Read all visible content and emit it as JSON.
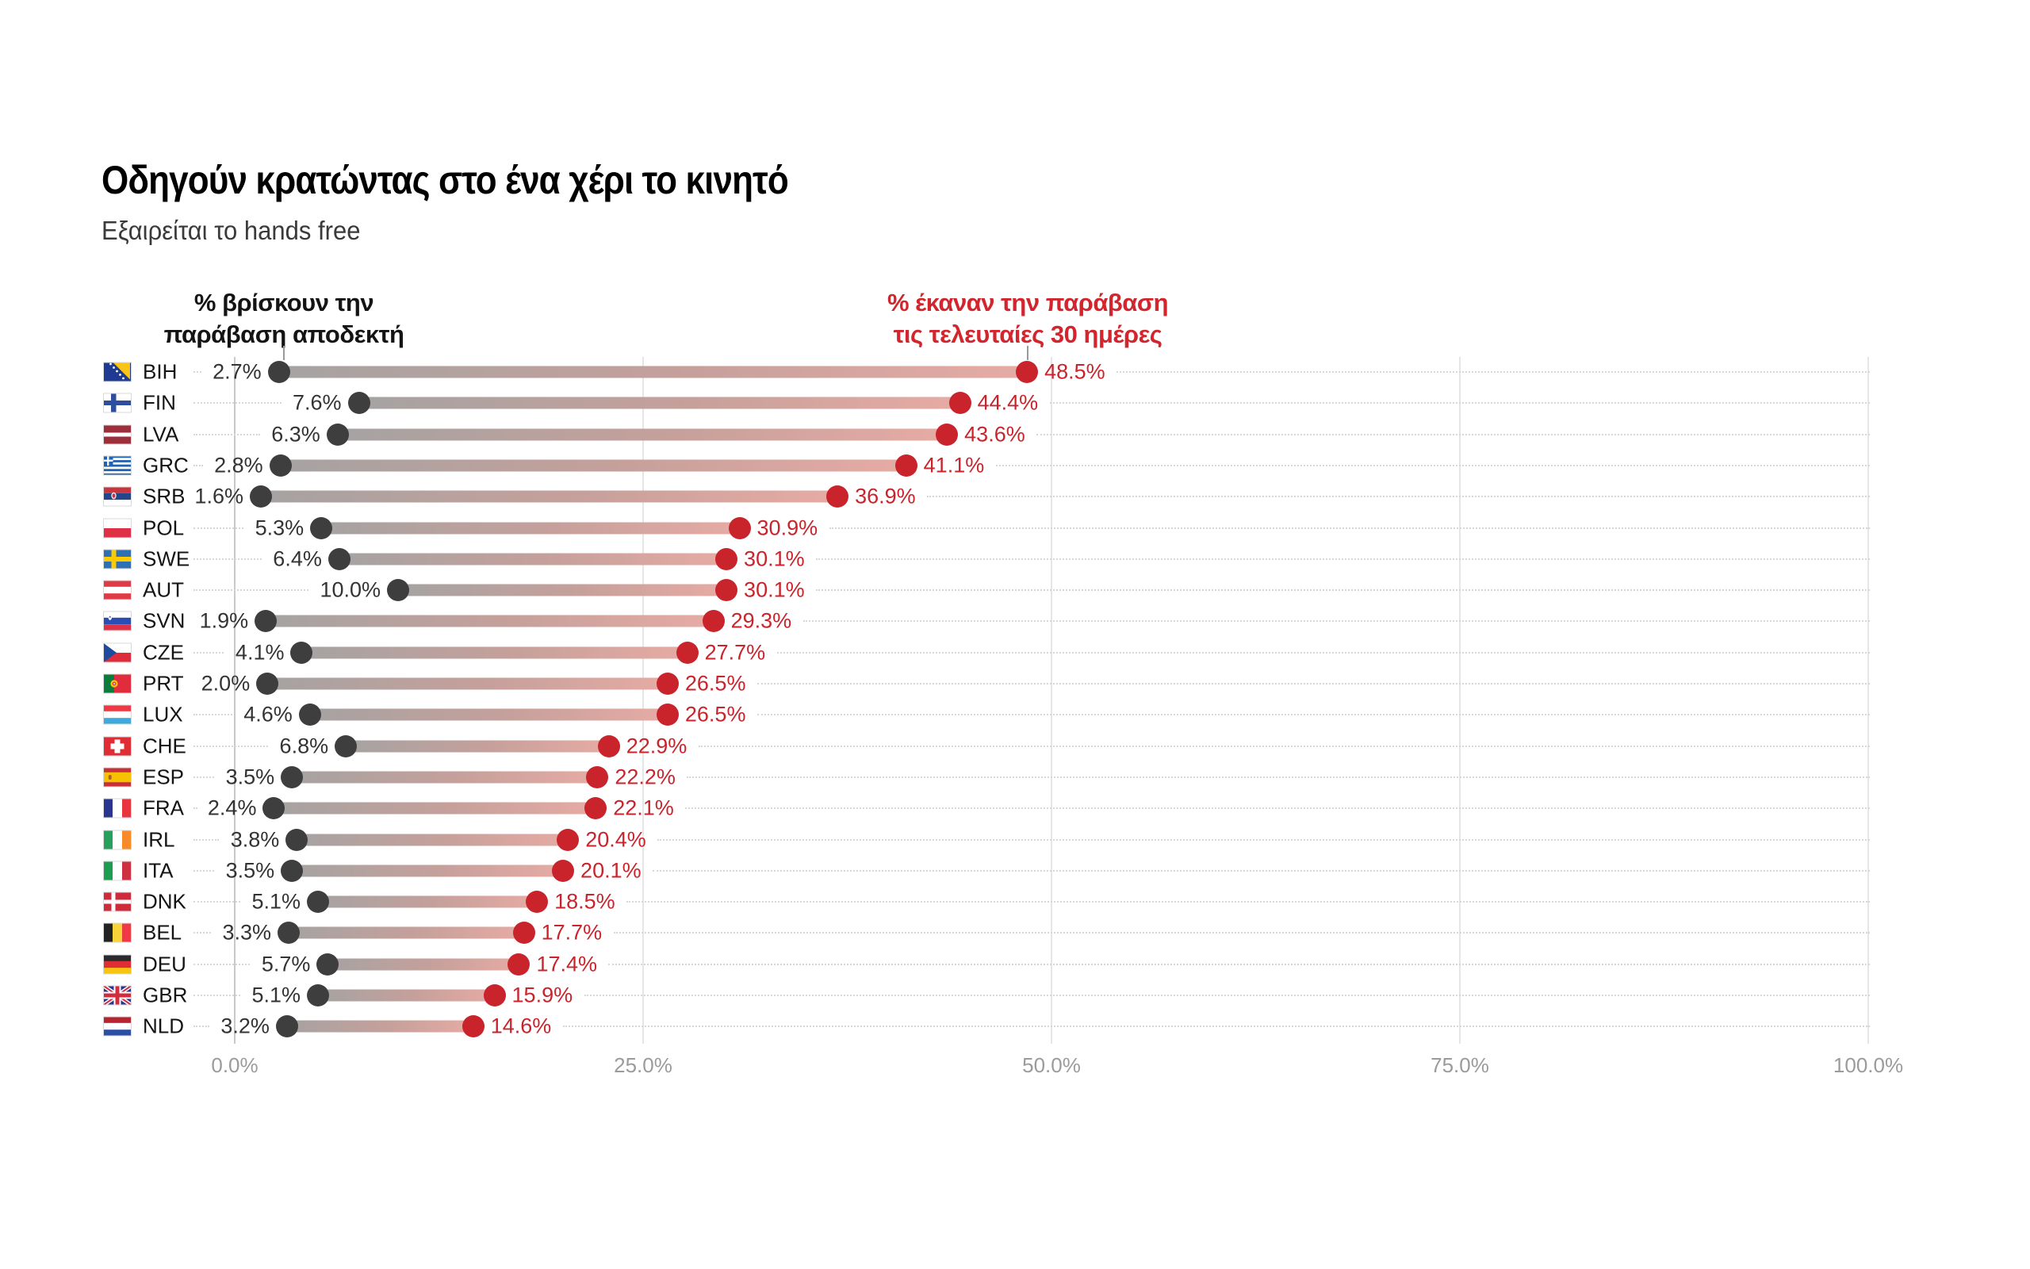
{
  "title": "Οδηγούν κρατώντας στο ένα χέρι το κινητό",
  "subtitle": "Εξαιρείται το hands free",
  "legend_left": {
    "line1": "% βρίσκουν την",
    "line2": "παράβαση αποδεκτή"
  },
  "legend_right": {
    "line1": "% έκαναν την παράβαση",
    "line2": "τις τελευταίες 30 ημέρες"
  },
  "colors": {
    "accept_dot": "#3e3e3e",
    "accept_text": "#333333",
    "violate_dot": "#c9242c",
    "violate_text": "#c9242c",
    "header_red": "#d2252e",
    "bar_start": "#a5a3a2",
    "bar_mid": "#c6a09b",
    "bar_end": "#e6aba4",
    "grid": "#e6e6e6",
    "grid_zero": "#c9c9c9",
    "axis_text": "#9b9b9b",
    "leader": "#d7d7d7",
    "pointer": "#9a9a9a"
  },
  "chart_data": {
    "type": "dumbbell",
    "unit": "%",
    "series_names": [
      "% βρίσκουν την παράβαση αποδεκτή",
      "% έκαναν την παράβαση τις τελευταίες 30 ημέρες"
    ],
    "x_axis": {
      "min": 0,
      "max": 100,
      "ticks": [
        {
          "label": "0.0%",
          "value": 0
        },
        {
          "label": "25.0%",
          "value": 25
        },
        {
          "label": "50.0%",
          "value": 50
        },
        {
          "label": "75.0%",
          "value": 75
        },
        {
          "label": "100.0%",
          "value": 100
        }
      ]
    },
    "rows": [
      {
        "code": "BIH",
        "flag": "bih",
        "accept": 2.7,
        "accept_label": "2.7%",
        "violate": 48.5,
        "violate_label": "48.5%"
      },
      {
        "code": "FIN",
        "flag": "fin",
        "accept": 7.6,
        "accept_label": "7.6%",
        "violate": 44.4,
        "violate_label": "44.4%"
      },
      {
        "code": "LVA",
        "flag": "lva",
        "accept": 6.3,
        "accept_label": "6.3%",
        "violate": 43.6,
        "violate_label": "43.6%"
      },
      {
        "code": "GRC",
        "flag": "grc",
        "accept": 2.8,
        "accept_label": "2.8%",
        "violate": 41.1,
        "violate_label": "41.1%"
      },
      {
        "code": "SRB",
        "flag": "srb",
        "accept": 1.6,
        "accept_label": "1.6%",
        "violate": 36.9,
        "violate_label": "36.9%"
      },
      {
        "code": "POL",
        "flag": "pol",
        "accept": 5.3,
        "accept_label": "5.3%",
        "violate": 30.9,
        "violate_label": "30.9%"
      },
      {
        "code": "SWE",
        "flag": "swe",
        "accept": 6.4,
        "accept_label": "6.4%",
        "violate": 30.1,
        "violate_label": "30.1%"
      },
      {
        "code": "AUT",
        "flag": "aut",
        "accept": 10.0,
        "accept_label": "10.0%",
        "violate": 30.1,
        "violate_label": "30.1%"
      },
      {
        "code": "SVN",
        "flag": "svn",
        "accept": 1.9,
        "accept_label": "1.9%",
        "violate": 29.3,
        "violate_label": "29.3%"
      },
      {
        "code": "CZE",
        "flag": "cze",
        "accept": 4.1,
        "accept_label": "4.1%",
        "violate": 27.7,
        "violate_label": "27.7%"
      },
      {
        "code": "PRT",
        "flag": "prt",
        "accept": 2.0,
        "accept_label": "2.0%",
        "violate": 26.5,
        "violate_label": "26.5%"
      },
      {
        "code": "LUX",
        "flag": "lux",
        "accept": 4.6,
        "accept_label": "4.6%",
        "violate": 26.5,
        "violate_label": "26.5%"
      },
      {
        "code": "CHE",
        "flag": "che",
        "accept": 6.8,
        "accept_label": "6.8%",
        "violate": 22.9,
        "violate_label": "22.9%"
      },
      {
        "code": "ESP",
        "flag": "esp",
        "accept": 3.5,
        "accept_label": "3.5%",
        "violate": 22.2,
        "violate_label": "22.2%"
      },
      {
        "code": "FRA",
        "flag": "fra",
        "accept": 2.4,
        "accept_label": "2.4%",
        "violate": 22.1,
        "violate_label": "22.1%"
      },
      {
        "code": "IRL",
        "flag": "irl",
        "accept": 3.8,
        "accept_label": "3.8%",
        "violate": 20.4,
        "violate_label": "20.4%"
      },
      {
        "code": "ITA",
        "flag": "ita",
        "accept": 3.5,
        "accept_label": "3.5%",
        "violate": 20.1,
        "violate_label": "20.1%"
      },
      {
        "code": "DNK",
        "flag": "dnk",
        "accept": 5.1,
        "accept_label": "5.1%",
        "violate": 18.5,
        "violate_label": "18.5%"
      },
      {
        "code": "BEL",
        "flag": "bel",
        "accept": 3.3,
        "accept_label": "3.3%",
        "violate": 17.7,
        "violate_label": "17.7%"
      },
      {
        "code": "DEU",
        "flag": "deu",
        "accept": 5.7,
        "accept_label": "5.7%",
        "violate": 17.4,
        "violate_label": "17.4%"
      },
      {
        "code": "GBR",
        "flag": "gbr",
        "accept": 5.1,
        "accept_label": "5.1%",
        "violate": 15.9,
        "violate_label": "15.9%"
      },
      {
        "code": "NLD",
        "flag": "nld",
        "accept": 3.2,
        "accept_label": "3.2%",
        "violate": 14.6,
        "violate_label": "14.6%"
      }
    ]
  }
}
